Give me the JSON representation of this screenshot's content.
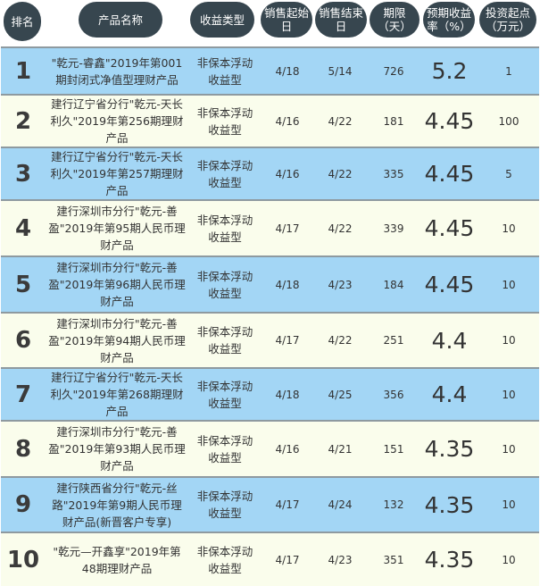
{
  "header": {
    "rank": "排名",
    "name": "产品名称",
    "type": "收益类型",
    "start": [
      "销售起始",
      "日"
    ],
    "end": [
      "销售结束",
      "日"
    ],
    "term": [
      "期限",
      "（天）"
    ],
    "rate": [
      "预期收益",
      "率（%）"
    ],
    "min": [
      "投资起点",
      "（万元）"
    ]
  },
  "colors": {
    "header_bg": "#37464f",
    "row_blue": "#a3d6f5",
    "row_cream": "#fafdec"
  },
  "rows": [
    {
      "rank": "1",
      "name": "\"乾元-睿鑫\"2019年第001期封闭式净值型理财产品",
      "type": "非保本浮动收益型",
      "start": "4/18",
      "end": "5/14",
      "term": "726",
      "rate": "5.2",
      "min": "1"
    },
    {
      "rank": "2",
      "name": "建行辽宁省分行\"乾元-天长利久\"2019年第256期理财产品",
      "type": "非保本浮动收益型",
      "start": "4/16",
      "end": "4/22",
      "term": "181",
      "rate": "4.45",
      "min": "100"
    },
    {
      "rank": "3",
      "name": "建行辽宁省分行\"乾元-天长利久\"2019年第257期理财产品",
      "type": "非保本浮动收益型",
      "start": "4/16",
      "end": "4/22",
      "term": "335",
      "rate": "4.45",
      "min": "5"
    },
    {
      "rank": "4",
      "name": "建行深圳市分行\"乾元-善盈\"2019年第95期人民币理财产品",
      "type": "非保本浮动收益型",
      "start": "4/17",
      "end": "4/22",
      "term": "339",
      "rate": "4.45",
      "min": "10"
    },
    {
      "rank": "5",
      "name": "建行深圳市分行\"乾元-善盈\"2019年第96期人民币理财产品",
      "type": "非保本浮动收益型",
      "start": "4/18",
      "end": "4/23",
      "term": "184",
      "rate": "4.45",
      "min": "10"
    },
    {
      "rank": "6",
      "name": "建行深圳市分行\"乾元-善盈\"2019年第94期人民币理财产品",
      "type": "非保本浮动收益型",
      "start": "4/17",
      "end": "4/22",
      "term": "251",
      "rate": "4.4",
      "min": "10"
    },
    {
      "rank": "7",
      "name": "建行辽宁省分行\"乾元-天长利久\"2019年第268期理财产品",
      "type": "非保本浮动收益型",
      "start": "4/18",
      "end": "4/25",
      "term": "356",
      "rate": "4.4",
      "min": "10"
    },
    {
      "rank": "8",
      "name": "建行深圳市分行\"乾元-善盈\"2019年第93期人民币理财产品",
      "type": "非保本浮动收益型",
      "start": "4/16",
      "end": "4/21",
      "term": "151",
      "rate": "4.35",
      "min": "10"
    },
    {
      "rank": "9",
      "name": "建行陕西省分行\"乾元-丝路\"2019年第9期人民币理财产品(新晋客户专享)",
      "type": "非保本浮动收益型",
      "start": "4/17",
      "end": "4/24",
      "term": "132",
      "rate": "4.35",
      "min": "10"
    },
    {
      "rank": "10",
      "name": "\"乾元—开鑫享\"2019年第48期理财产品",
      "type": "非保本浮动收益型",
      "start": "4/17",
      "end": "4/23",
      "term": "351",
      "rate": "4.35",
      "min": "10"
    }
  ]
}
